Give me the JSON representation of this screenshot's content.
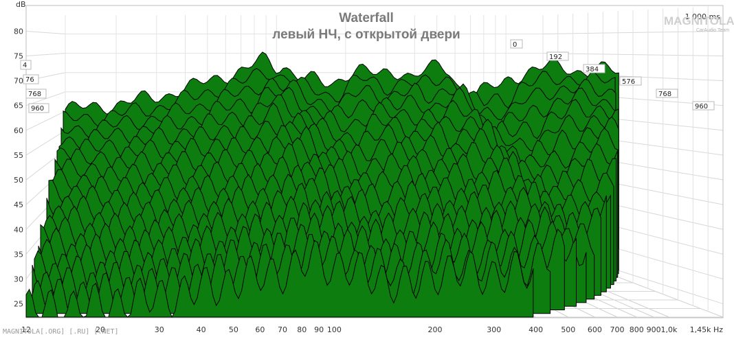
{
  "chart_data": {
    "type": "area",
    "subtype": "waterfall-3d",
    "title": "Waterfall",
    "subtitle": "левый НЧ, с открытой двери",
    "ylabel": "dB",
    "ylim": [
      23,
      82
    ],
    "y_ticks": [
      "80",
      "75",
      "70",
      "65",
      "60",
      "55",
      "50",
      "45",
      "40",
      "35",
      "30",
      "25"
    ],
    "x_scale": "log",
    "xlim": [
      12,
      1450
    ],
    "x_ticks": [
      {
        "v": 12,
        "label": "12"
      },
      {
        "v": 20,
        "label": "20"
      },
      {
        "v": 30,
        "label": "30"
      },
      {
        "v": 40,
        "label": "40"
      },
      {
        "v": 50,
        "label": "50"
      },
      {
        "v": 60,
        "label": "60"
      },
      {
        "v": 70,
        "label": "70"
      },
      {
        "v": 80,
        "label": "80"
      },
      {
        "v": 90,
        "label": "90"
      },
      {
        "v": 100,
        "label": "100"
      },
      {
        "v": 200,
        "label": "200"
      },
      {
        "v": 300,
        "label": "300"
      },
      {
        "v": 400,
        "label": "400"
      },
      {
        "v": 500,
        "label": "500"
      },
      {
        "v": 600,
        "label": "600"
      },
      {
        "v": 700,
        "label": "700"
      },
      {
        "v": 800,
        "label": "800"
      },
      {
        "v": 900,
        "label": "900"
      },
      {
        "v": 1000,
        "label": "1,0k"
      },
      {
        "v": 1450,
        "label": "1,45k Hz"
      }
    ],
    "time_axis": {
      "unit": "ms",
      "ticks": [
        "0",
        "192",
        "384",
        "576",
        "768",
        "960"
      ],
      "max_label": "1 000 ms"
    },
    "left_time_labels": [
      "4",
      "76",
      "768",
      "960"
    ],
    "front_slice": {
      "time": "0",
      "points": [
        [
          12,
          60.5
        ],
        [
          14,
          61
        ],
        [
          16,
          61.5
        ],
        [
          18,
          62
        ],
        [
          20,
          63
        ],
        [
          22,
          63.5
        ],
        [
          25,
          64.5
        ],
        [
          28,
          66
        ],
        [
          30,
          66.5
        ],
        [
          33,
          68
        ],
        [
          36,
          69
        ],
        [
          40,
          70
        ],
        [
          43,
          70.5
        ],
        [
          46,
          72.5
        ],
        [
          48,
          73.5
        ],
        [
          50,
          73
        ],
        [
          53,
          71.5
        ],
        [
          56,
          72
        ],
        [
          60,
          70
        ],
        [
          63,
          69
        ],
        [
          66,
          68.5
        ],
        [
          70,
          68
        ],
        [
          75,
          67
        ],
        [
          80,
          67
        ],
        [
          85,
          69
        ],
        [
          90,
          70.5
        ],
        [
          95,
          71
        ],
        [
          100,
          70.5
        ],
        [
          110,
          69
        ],
        [
          120,
          70
        ],
        [
          130,
          70.5
        ],
        [
          140,
          69
        ],
        [
          150,
          70.5
        ],
        [
          160,
          71
        ],
        [
          170,
          71.5
        ],
        [
          180,
          70.5
        ],
        [
          190,
          67
        ],
        [
          200,
          65.5
        ],
        [
          210,
          66
        ],
        [
          220,
          64.5
        ],
        [
          240,
          66.5
        ],
        [
          260,
          66
        ],
        [
          280,
          69
        ],
        [
          300,
          69.5
        ],
        [
          330,
          71
        ],
        [
          360,
          71.5
        ],
        [
          400,
          71.5
        ],
        [
          440,
          70.5
        ],
        [
          480,
          70.5
        ],
        [
          520,
          71
        ],
        [
          560,
          70.5
        ],
        [
          600,
          70
        ]
      ]
    },
    "slice_count": 20,
    "fill_color": "#0e7d10",
    "line_color": "#000000",
    "floor_db": 35.5,
    "grid": true
  },
  "watermark_text": "MAGNITOLA[.ORG] [.RU] [.NET]",
  "logo": {
    "name": "MAGNITOLA",
    "tagline": "CarAudio Team"
  }
}
